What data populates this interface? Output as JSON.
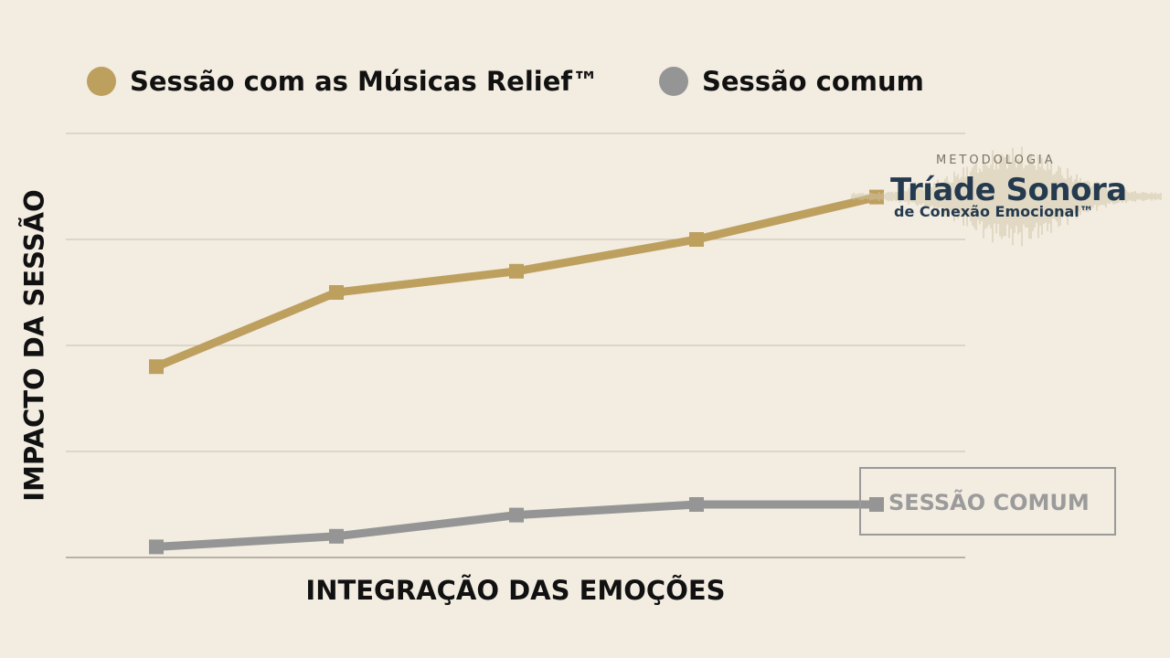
{
  "legend": {
    "items": [
      {
        "label": "Sessão com as Músicas Relief™",
        "color": "#bd9f5e"
      },
      {
        "label": "Sessão comum",
        "color": "#959595"
      }
    ]
  },
  "end_label": "SESSÃO COMUM",
  "logo": {
    "kicker": "METODOLOGIA",
    "title": "Tríade Sonora",
    "subtitle": "de Conexão Emocional™"
  },
  "colors": {
    "background": "#f2ece1",
    "gridline": "#cfc8bc",
    "baseline": "#a49e93",
    "relief": "#bd9f5e",
    "comum": "#959595",
    "logo_text": "#243a4f"
  },
  "chart_data": {
    "type": "line",
    "title": "",
    "xlabel": "INTEGRAÇÃO DAS EMOÇÕES",
    "ylabel": "IMPACTO DA SESSÃO",
    "x": [
      1,
      2,
      3,
      4,
      5
    ],
    "ylim": [
      0,
      4
    ],
    "grid": true,
    "legend_position": "top-left",
    "series": [
      {
        "name": "Sessão com as Músicas Relief™",
        "values": [
          1.8,
          2.5,
          2.7,
          3.0,
          3.4
        ],
        "color": "#bd9f5e"
      },
      {
        "name": "Sessão comum",
        "values": [
          0.1,
          0.2,
          0.4,
          0.5,
          0.5
        ],
        "color": "#959595"
      }
    ]
  }
}
